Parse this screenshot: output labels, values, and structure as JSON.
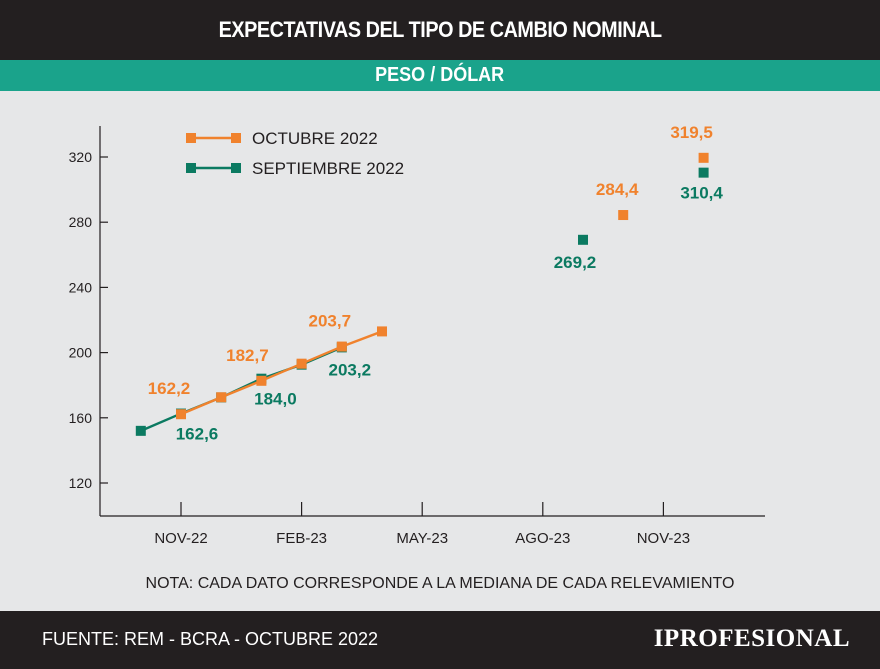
{
  "header": {
    "title": "EXPECTATIVAS DEL TIPO DE CAMBIO NOMINAL",
    "subtitle": "PESO / DÓLAR"
  },
  "footer": {
    "source": "FUENTE: REM - BCRA - OCTUBRE 2022",
    "brand": "IPROFESIONAL"
  },
  "chart_data": {
    "type": "line",
    "note": "NOTA: CADA DATO CORRESPONDE A LA MEDIANA DE CADA RELEVAMIENTO",
    "x_ticks": [
      "NOV-22",
      "FEB-23",
      "MAY-23",
      "AGO-23",
      "NOV-23"
    ],
    "y_ticks": [
      120,
      160,
      200,
      240,
      280,
      320
    ],
    "ylim": [
      110,
      335
    ],
    "legend_position": "top-left",
    "grid": false,
    "series": [
      {
        "name": "OCTUBRE 2022",
        "color": "#f0822d",
        "points": [
          {
            "x": "2022-11",
            "y": 162.2,
            "label": "162,2"
          },
          {
            "x": "2022-12",
            "y": 172.6
          },
          {
            "x": "2023-01",
            "y": 182.7,
            "label": "182,7"
          },
          {
            "x": "2023-02",
            "y": 193.2
          },
          {
            "x": "2023-03",
            "y": 203.7,
            "label": "203,7"
          },
          {
            "x": "2023-04",
            "y": 213.0
          }
        ],
        "standalone_points": [
          {
            "x": "2023-10",
            "y": 284.4,
            "label": "284,4"
          },
          {
            "x": "2023-12",
            "y": 319.5,
            "label": "319,5"
          }
        ]
      },
      {
        "name": "SEPTIEMBRE 2022",
        "color": "#0b7a61",
        "points": [
          {
            "x": "2022-10",
            "y": 152.0
          },
          {
            "x": "2022-11",
            "y": 162.6,
            "label": "162,6"
          },
          {
            "x": "2022-12",
            "y": 172.5
          },
          {
            "x": "2023-01",
            "y": 184.0,
            "label": "184,0"
          },
          {
            "x": "2023-02",
            "y": 192.6
          },
          {
            "x": "2023-03",
            "y": 203.2,
            "label": "203,2"
          }
        ],
        "standalone_points": [
          {
            "x": "2023-09",
            "y": 269.2,
            "label": "269,2"
          },
          {
            "x": "2023-12",
            "y": 310.4,
            "label": "310,4"
          }
        ]
      }
    ]
  }
}
